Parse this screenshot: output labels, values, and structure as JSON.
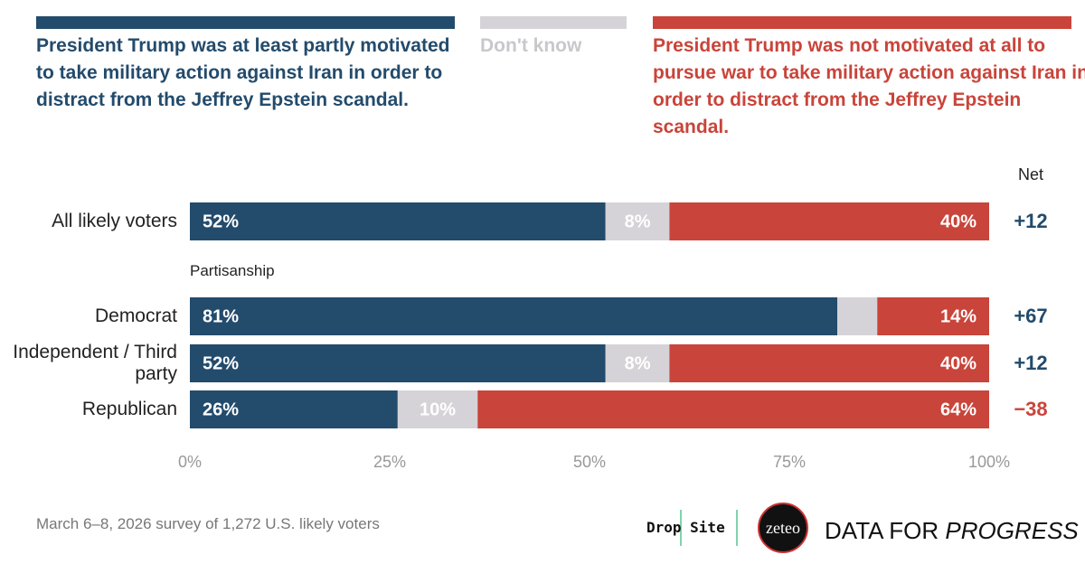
{
  "chart_data": {
    "type": "stacked-bar",
    "categories": [
      "All likely voters",
      "Democrat",
      "Independent / Third party",
      "Republican"
    ],
    "group_label": "Partisanship",
    "series": [
      {
        "name": "President Trump was at least partly motivated to take military action against Iran in order to distract from the Jeffrey Epstein scandal.",
        "color": "#234b6c",
        "values": [
          52,
          81,
          52,
          26
        ],
        "value_labels": [
          "52%",
          "81%",
          "52%",
          "26%"
        ]
      },
      {
        "name": "Don't know",
        "color": "#d5d3d7",
        "values": [
          8,
          5,
          8,
          10
        ],
        "value_labels": [
          "8%",
          null,
          "8%",
          "10%"
        ]
      },
      {
        "name": "President Trump was not motivated at all to pursue war to take military action against Iran in order to distract from the Jeffrey Epstein scandal.",
        "color": "#c9443a",
        "values": [
          40,
          14,
          40,
          64
        ],
        "value_labels": [
          "40%",
          "14%",
          "40%",
          "64%"
        ]
      }
    ],
    "net": {
      "title": "Net",
      "values": [
        12,
        67,
        12,
        -38
      ],
      "value_labels": [
        "+12",
        "+67",
        "+12",
        "−38"
      ]
    },
    "xlim": [
      0,
      100
    ],
    "xticks": [
      {
        "value": 0,
        "label": "0%"
      },
      {
        "value": 25,
        "label": "25%"
      },
      {
        "value": 50,
        "label": "50%"
      },
      {
        "value": 75,
        "label": "75%"
      },
      {
        "value": 100,
        "label": "100%"
      }
    ],
    "footnote": "March 6–8, 2026 survey of 1,272 U.S. likely voters",
    "logos": [
      "Drop Site",
      "zeteo",
      "DATA FOR",
      "PROGRESS"
    ]
  }
}
